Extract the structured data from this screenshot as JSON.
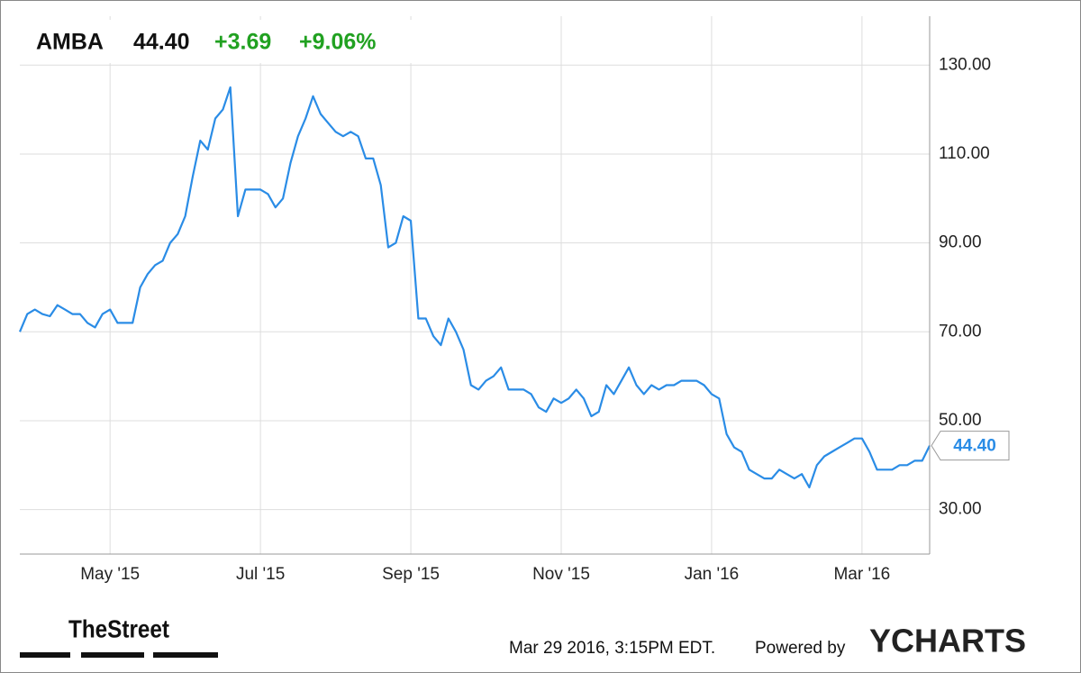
{
  "chart_data": {
    "type": "line",
    "ticker": "AMBA",
    "price": "44.40",
    "change": "+3.69",
    "change_pct": "+9.06%",
    "color": "#2a8ce6",
    "change_color": "#21a121",
    "grid": true,
    "categories": [
      null,
      null,
      null,
      null,
      null,
      null,
      null,
      null,
      null,
      null,
      null,
      null,
      "May '15",
      null,
      null,
      null,
      null,
      null,
      null,
      null,
      null,
      null,
      null,
      null,
      null,
      null,
      null,
      null,
      null,
      null,
      null,
      null,
      "Jul '15",
      null,
      null,
      null,
      null,
      null,
      null,
      null,
      null,
      null,
      null,
      null,
      null,
      null,
      null,
      null,
      null,
      null,
      null,
      null,
      "Sep '15",
      null,
      null,
      null,
      null,
      null,
      null,
      null,
      null,
      null,
      null,
      null,
      null,
      null,
      null,
      null,
      null,
      null,
      null,
      null,
      "Nov '15",
      null,
      null,
      null,
      null,
      null,
      null,
      null,
      null,
      null,
      null,
      null,
      null,
      null,
      null,
      null,
      null,
      null,
      null,
      null,
      "Jan '16",
      null,
      null,
      null,
      null,
      null,
      null,
      null,
      null,
      null,
      null,
      null,
      null,
      null,
      null,
      null,
      null,
      null,
      null,
      null,
      "Mar '16",
      null,
      null,
      null,
      null,
      null,
      null,
      null,
      null,
      null
    ],
    "values": [
      70,
      74,
      75,
      74,
      73.5,
      76,
      75,
      74,
      74,
      72,
      71,
      74,
      75,
      72,
      72,
      72,
      80,
      83,
      85,
      86,
      90,
      92,
      96,
      105,
      113,
      111,
      118,
      120,
      125,
      96,
      102,
      102,
      102,
      101,
      98,
      100,
      108,
      114,
      118,
      123,
      119,
      117,
      115,
      114,
      115,
      114,
      109,
      109,
      103,
      89,
      90,
      96,
      95,
      73,
      73,
      69,
      67,
      73,
      70,
      66,
      58,
      57,
      59,
      60,
      62,
      57,
      57,
      57,
      56,
      53,
      52,
      55,
      54,
      55,
      57,
      55,
      51,
      52,
      58,
      56,
      59,
      62,
      58,
      56,
      58,
      57,
      58,
      58,
      59,
      59,
      59,
      58,
      56,
      55,
      47,
      44,
      43,
      39,
      38,
      37,
      37,
      39,
      38,
      37,
      38,
      35,
      40,
      42,
      43,
      44,
      45,
      46,
      46,
      43,
      39,
      39,
      39,
      40,
      40,
      41,
      41,
      44.4
    ],
    "ylim": [
      20,
      141
    ],
    "yticks": [
      {
        "value": 30,
        "label": "30.00"
      },
      {
        "value": 50,
        "label": "50.00"
      },
      {
        "value": 70,
        "label": "70.00"
      },
      {
        "value": 90,
        "label": "90.00"
      },
      {
        "value": 110,
        "label": "110.00"
      },
      {
        "value": 130,
        "label": "130.00"
      }
    ],
    "footer": {
      "brand": "TheStreet",
      "timestamp": "Mar 29 2016, 3:15PM EDT.",
      "powered": "Powered by",
      "logo": "YCHARTS"
    }
  }
}
